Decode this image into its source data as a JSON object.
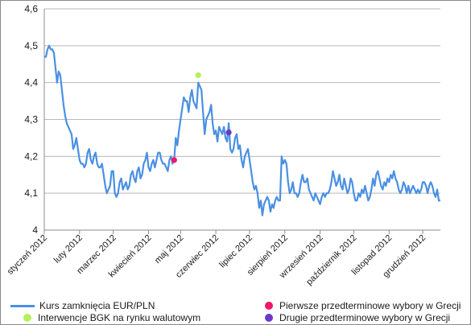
{
  "chart_data": {
    "type": "line",
    "title": "",
    "xlabel": "",
    "ylabel": "",
    "ylim": [
      4.0,
      4.6
    ],
    "yticks": [
      "4",
      "4,1",
      "4,2",
      "4,3",
      "4,4",
      "4,5",
      "4,6"
    ],
    "grid": true,
    "x_unit": "trading day index (0 = 2 Jan 2012)",
    "month_labels": [
      "styczeń 2012",
      "luty 2012",
      "marzec 2012",
      "kwiecień 2012",
      "maj 2012",
      "czerwiec 2012",
      "lipiec 2012",
      "sierpień 2012",
      "wrzesień 2012",
      "październik 2012",
      "listopad 2012",
      "grudzień 2012"
    ],
    "month_positions": [
      0,
      22,
      43,
      65,
      85,
      107,
      128,
      150,
      172,
      193,
      215,
      236
    ],
    "series": [
      {
        "name": "Kurs zamknięcia EUR/PLN",
        "color": "#4a90e2",
        "points": [
          [
            0,
            4.47
          ],
          [
            1,
            4.47
          ],
          [
            2,
            4.49
          ],
          [
            3,
            4.5
          ],
          [
            4,
            4.49
          ],
          [
            5,
            4.49
          ],
          [
            6,
            4.48
          ],
          [
            7,
            4.44
          ],
          [
            8,
            4.4
          ],
          [
            9,
            4.43
          ],
          [
            10,
            4.42
          ],
          [
            11,
            4.38
          ],
          [
            12,
            4.34
          ],
          [
            13,
            4.31
          ],
          [
            14,
            4.29
          ],
          [
            15,
            4.28
          ],
          [
            16,
            4.27
          ],
          [
            17,
            4.26
          ],
          [
            18,
            4.22
          ],
          [
            19,
            4.23
          ],
          [
            20,
            4.25
          ],
          [
            21,
            4.22
          ],
          [
            22,
            4.19
          ],
          [
            23,
            4.18
          ],
          [
            24,
            4.18
          ],
          [
            25,
            4.17
          ],
          [
            26,
            4.18
          ],
          [
            27,
            4.21
          ],
          [
            28,
            4.22
          ],
          [
            29,
            4.19
          ],
          [
            30,
            4.18
          ],
          [
            31,
            4.2
          ],
          [
            32,
            4.21
          ],
          [
            33,
            4.18
          ],
          [
            34,
            4.17
          ],
          [
            35,
            4.17
          ],
          [
            36,
            4.18
          ],
          [
            37,
            4.15
          ],
          [
            38,
            4.12
          ],
          [
            39,
            4.1
          ],
          [
            40,
            4.11
          ],
          [
            41,
            4.12
          ],
          [
            42,
            4.16
          ],
          [
            43,
            4.16
          ],
          [
            44,
            4.1
          ],
          [
            45,
            4.09
          ],
          [
            46,
            4.1
          ],
          [
            47,
            4.13
          ],
          [
            48,
            4.14
          ],
          [
            49,
            4.11
          ],
          [
            50,
            4.12
          ],
          [
            51,
            4.13
          ],
          [
            52,
            4.11
          ],
          [
            53,
            4.12
          ],
          [
            54,
            4.15
          ],
          [
            55,
            4.16
          ],
          [
            56,
            4.14
          ],
          [
            57,
            4.13
          ],
          [
            58,
            4.16
          ],
          [
            59,
            4.17
          ],
          [
            60,
            4.14
          ],
          [
            61,
            4.15
          ],
          [
            62,
            4.18
          ],
          [
            63,
            4.19
          ],
          [
            64,
            4.21
          ],
          [
            65,
            4.17
          ],
          [
            66,
            4.16
          ],
          [
            67,
            4.18
          ],
          [
            68,
            4.19
          ],
          [
            69,
            4.17
          ],
          [
            70,
            4.19
          ],
          [
            71,
            4.21
          ],
          [
            72,
            4.21
          ],
          [
            73,
            4.19
          ],
          [
            74,
            4.18
          ],
          [
            75,
            4.18
          ],
          [
            76,
            4.17
          ],
          [
            77,
            4.16
          ],
          [
            78,
            4.19
          ],
          [
            79,
            4.2
          ],
          [
            80,
            4.18
          ],
          [
            81,
            4.19
          ],
          [
            82,
            4.25
          ],
          [
            83,
            4.23
          ],
          [
            84,
            4.27
          ],
          [
            85,
            4.3
          ],
          [
            86,
            4.33
          ],
          [
            87,
            4.36
          ],
          [
            88,
            4.35
          ],
          [
            89,
            4.35
          ],
          [
            90,
            4.32
          ],
          [
            91,
            4.36
          ],
          [
            92,
            4.38
          ],
          [
            93,
            4.35
          ],
          [
            94,
            4.34
          ],
          [
            95,
            4.33
          ],
          [
            96,
            4.4
          ],
          [
            97,
            4.39
          ],
          [
            98,
            4.38
          ],
          [
            99,
            4.32
          ],
          [
            100,
            4.26
          ],
          [
            101,
            4.3
          ],
          [
            102,
            4.31
          ],
          [
            103,
            4.32
          ],
          [
            104,
            4.34
          ],
          [
            105,
            4.29
          ],
          [
            106,
            4.26
          ],
          [
            107,
            4.27
          ],
          [
            108,
            4.24
          ],
          [
            109,
            4.28
          ],
          [
            110,
            4.27
          ],
          [
            111,
            4.26
          ],
          [
            112,
            4.28
          ],
          [
            113,
            4.25
          ],
          [
            114,
            4.24
          ],
          [
            115,
            4.29
          ],
          [
            116,
            4.22
          ],
          [
            117,
            4.21
          ],
          [
            118,
            4.22
          ],
          [
            119,
            4.25
          ],
          [
            120,
            4.26
          ],
          [
            121,
            4.22
          ],
          [
            122,
            4.23
          ],
          [
            123,
            4.19
          ],
          [
            124,
            4.17
          ],
          [
            125,
            4.2
          ],
          [
            126,
            4.21
          ],
          [
            127,
            4.22
          ],
          [
            128,
            4.19
          ],
          [
            129,
            4.16
          ],
          [
            130,
            4.13
          ],
          [
            131,
            4.11
          ],
          [
            132,
            4.12
          ],
          [
            133,
            4.1
          ],
          [
            134,
            4.06
          ],
          [
            135,
            4.08
          ],
          [
            136,
            4.04
          ],
          [
            137,
            4.07
          ],
          [
            138,
            4.08
          ],
          [
            139,
            4.09
          ],
          [
            140,
            4.08
          ],
          [
            141,
            4.05
          ],
          [
            142,
            4.07
          ],
          [
            143,
            4.06
          ],
          [
            144,
            4.08
          ],
          [
            145,
            4.09
          ],
          [
            146,
            4.08
          ],
          [
            147,
            4.08
          ],
          [
            148,
            4.2
          ],
          [
            149,
            4.18
          ],
          [
            150,
            4.19
          ],
          [
            151,
            4.18
          ],
          [
            152,
            4.13
          ],
          [
            153,
            4.1
          ],
          [
            154,
            4.11
          ],
          [
            155,
            4.13
          ],
          [
            156,
            4.1
          ],
          [
            157,
            4.1
          ],
          [
            158,
            4.09
          ],
          [
            159,
            4.1
          ],
          [
            160,
            4.13
          ],
          [
            161,
            4.15
          ],
          [
            162,
            4.13
          ],
          [
            163,
            4.13
          ],
          [
            164,
            4.14
          ],
          [
            165,
            4.11
          ],
          [
            166,
            4.1
          ],
          [
            167,
            4.09
          ],
          [
            168,
            4.08
          ],
          [
            169,
            4.1
          ],
          [
            170,
            4.09
          ],
          [
            171,
            4.08
          ],
          [
            172,
            4.07
          ],
          [
            173,
            4.09
          ],
          [
            174,
            4.1
          ],
          [
            175,
            4.09
          ],
          [
            176,
            4.1
          ],
          [
            177,
            4.1
          ],
          [
            178,
            4.11
          ],
          [
            179,
            4.13
          ],
          [
            180,
            4.16
          ],
          [
            181,
            4.14
          ],
          [
            182,
            4.12
          ],
          [
            183,
            4.13
          ],
          [
            184,
            4.15
          ],
          [
            185,
            4.12
          ],
          [
            186,
            4.11
          ],
          [
            187,
            4.14
          ],
          [
            188,
            4.12
          ],
          [
            189,
            4.1
          ],
          [
            190,
            4.11
          ],
          [
            191,
            4.14
          ],
          [
            192,
            4.13
          ],
          [
            193,
            4.1
          ],
          [
            194,
            4.08
          ],
          [
            195,
            4.08
          ],
          [
            196,
            4.1
          ],
          [
            197,
            4.09
          ],
          [
            198,
            4.11
          ],
          [
            199,
            4.1
          ],
          [
            200,
            4.12
          ],
          [
            201,
            4.1
          ],
          [
            202,
            4.08
          ],
          [
            203,
            4.09
          ],
          [
            204,
            4.11
          ],
          [
            205,
            4.14
          ],
          [
            206,
            4.12
          ],
          [
            207,
            4.15
          ],
          [
            208,
            4.16
          ],
          [
            209,
            4.14
          ],
          [
            210,
            4.12
          ],
          [
            211,
            4.11
          ],
          [
            212,
            4.13
          ],
          [
            213,
            4.12
          ],
          [
            214,
            4.14
          ],
          [
            215,
            4.13
          ],
          [
            216,
            4.15
          ],
          [
            217,
            4.14
          ],
          [
            218,
            4.16
          ],
          [
            219,
            4.14
          ],
          [
            220,
            4.13
          ],
          [
            221,
            4.11
          ],
          [
            222,
            4.1
          ],
          [
            223,
            4.11
          ],
          [
            224,
            4.13
          ],
          [
            225,
            4.12
          ],
          [
            226,
            4.1
          ],
          [
            227,
            4.12
          ],
          [
            228,
            4.1
          ],
          [
            229,
            4.11
          ],
          [
            230,
            4.12
          ],
          [
            231,
            4.11
          ],
          [
            232,
            4.1
          ],
          [
            233,
            4.11
          ],
          [
            234,
            4.1
          ],
          [
            235,
            4.11
          ],
          [
            236,
            4.13
          ],
          [
            237,
            4.13
          ],
          [
            238,
            4.12
          ],
          [
            239,
            4.1
          ],
          [
            240,
            4.12
          ],
          [
            241,
            4.13
          ],
          [
            242,
            4.12
          ],
          [
            243,
            4.1
          ],
          [
            244,
            4.09
          ],
          [
            245,
            4.11
          ],
          [
            246,
            4.08
          ],
          [
            247,
            4.08
          ]
        ]
      }
    ],
    "markers": [
      {
        "name": "Interwencje BGK na rynku walutowym",
        "color": "#b5f05a",
        "x": 96,
        "y": 4.42
      },
      {
        "name": "Pierwsze przedterminowe wybory w Grecji",
        "color": "#f0186b",
        "x": 81,
        "y": 4.19
      },
      {
        "name": "Drugie przedterminowe wybory w Grecji",
        "color": "#6c38c8",
        "x": 115,
        "y": 4.265
      }
    ],
    "legend_placement": "bottom"
  },
  "legend": {
    "series_label": "Kurs zamknięcia EUR/PLN",
    "bgk_label": "Interwencje BGK na rynku walutowym",
    "greece1_label": "Pierwsze przedterminowe wybory w Grecji",
    "greece2_label": "Drugie przedterminowe wybory w Grecji"
  },
  "colors": {
    "line": "#4a90e2",
    "bgk": "#b5f05a",
    "greece1": "#f0186b",
    "greece2": "#6c38c8",
    "grid": "#b8b8b8",
    "axis": "#8c8c8c"
  }
}
